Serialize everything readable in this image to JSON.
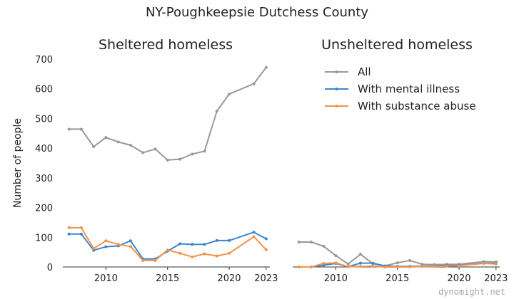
{
  "chart": {
    "suptitle": "NY-Poughkeepsie Dutchess County",
    "credit": "dynomight.net"
  },
  "colors": {
    "all": "#999999",
    "mental": "#3a86d0",
    "substance": "#f4934a"
  },
  "chart_data": [
    {
      "type": "line",
      "title": "Sheltered homeless",
      "ylabel": "Number of people",
      "xlabel": "",
      "xlim": [
        2006.5,
        2023.3
      ],
      "ylim": [
        0,
        700
      ],
      "yticks": [
        0,
        100,
        200,
        300,
        400,
        500,
        600,
        700
      ],
      "xticks": [
        2010,
        2015,
        2020,
        2023
      ],
      "grid": false,
      "x": [
        2007,
        2008,
        2009,
        2010,
        2011,
        2012,
        2013,
        2014,
        2015,
        2016,
        2017,
        2018,
        2019,
        2020,
        2022,
        2023
      ],
      "series": [
        {
          "name": "All",
          "color_key": "all",
          "values": [
            464,
            464,
            405,
            436,
            421,
            410,
            385,
            397,
            360,
            363,
            380,
            390,
            525,
            582,
            617,
            672
          ]
        },
        {
          "name": "With mental illness",
          "color_key": "mental",
          "values": [
            111,
            111,
            56,
            68,
            71,
            88,
            27,
            27,
            53,
            78,
            76,
            76,
            89,
            89,
            117,
            95
          ]
        },
        {
          "name": "With substance abuse",
          "color_key": "substance",
          "values": [
            132,
            132,
            62,
            88,
            76,
            69,
            22,
            22,
            57,
            46,
            34,
            44,
            37,
            46,
            102,
            58
          ]
        }
      ]
    },
    {
      "type": "line",
      "title": "Unsheltered homeless",
      "ylabel": "",
      "xlabel": "",
      "xlim": [
        2006.5,
        2023.3
      ],
      "ylim": [
        0,
        700
      ],
      "xticks": [
        2010,
        2015,
        2020,
        2023
      ],
      "grid": false,
      "legend": "top-right",
      "x": [
        2007,
        2008,
        2009,
        2010,
        2011,
        2012,
        2013,
        2014,
        2015,
        2016,
        2017,
        2018,
        2019,
        2020,
        2022,
        2023
      ],
      "series": [
        {
          "name": "All",
          "color_key": "all",
          "values": [
            84,
            84,
            70,
            38,
            10,
            43,
            11,
            4,
            14,
            22,
            9,
            8,
            9,
            9,
            18,
            17
          ]
        },
        {
          "name": "With mental illness",
          "color_key": "mental",
          "values": [
            0,
            0,
            6,
            12,
            1,
            13,
            13,
            3,
            2,
            2,
            3,
            3,
            5,
            5,
            13,
            12
          ]
        },
        {
          "name": "With substance abuse",
          "color_key": "substance",
          "values": [
            0,
            0,
            12,
            14,
            1,
            2,
            3,
            0,
            0,
            0,
            2,
            2,
            3,
            4,
            12,
            10
          ]
        }
      ]
    }
  ]
}
